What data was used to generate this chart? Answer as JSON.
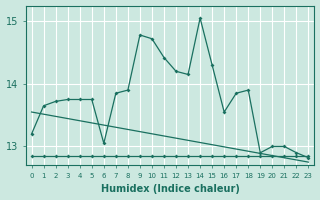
{
  "xlabel": "Humidex (Indice chaleur)",
  "background_color": "#cce8e0",
  "grid_color": "#ffffff",
  "line_color": "#1a7060",
  "xlim": [
    -0.5,
    23.5
  ],
  "ylim": [
    12.7,
    15.25
  ],
  "yticks": [
    13,
    14,
    15
  ],
  "xticks": [
    0,
    1,
    2,
    3,
    4,
    5,
    6,
    7,
    8,
    9,
    10,
    11,
    12,
    13,
    14,
    15,
    16,
    17,
    18,
    19,
    20,
    21,
    22,
    23
  ],
  "main_x": [
    0,
    1,
    2,
    3,
    4,
    5,
    6,
    7,
    8,
    9,
    10,
    11,
    12,
    13,
    14,
    15,
    16,
    17,
    18,
    19,
    20,
    21,
    22,
    23
  ],
  "main_y": [
    13.2,
    13.65,
    13.72,
    13.75,
    13.75,
    13.75,
    13.05,
    13.85,
    13.9,
    14.78,
    14.72,
    14.42,
    14.2,
    14.15,
    15.05,
    14.3,
    13.55,
    13.85,
    13.9,
    12.9,
    13.0,
    13.0,
    12.9,
    12.82
  ],
  "flat_x": [
    0,
    1,
    2,
    3,
    4,
    5,
    6,
    7,
    8,
    9,
    10,
    11,
    12,
    13,
    14,
    15,
    16,
    17,
    18,
    19,
    20,
    21,
    22,
    23
  ],
  "flat_y": [
    12.85,
    12.85,
    12.85,
    12.85,
    12.85,
    12.85,
    12.85,
    12.85,
    12.85,
    12.85,
    12.85,
    12.85,
    12.85,
    12.85,
    12.85,
    12.85,
    12.85,
    12.85,
    12.85,
    12.85,
    12.85,
    12.85,
    12.85,
    12.85
  ],
  "trend_x": [
    0,
    23
  ],
  "trend_y": [
    13.55,
    12.75
  ]
}
